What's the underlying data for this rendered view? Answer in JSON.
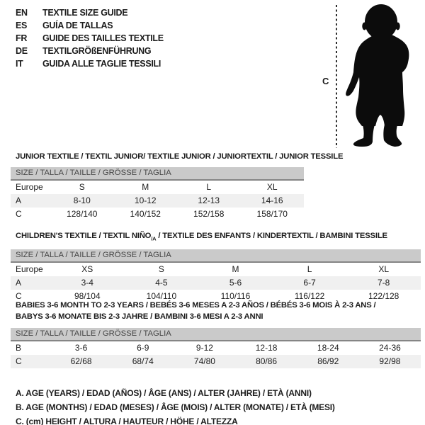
{
  "languages": [
    {
      "code": "EN",
      "label": "TEXTILE SIZE GUIDE"
    },
    {
      "code": "ES",
      "label": "GUÍA DE TALLAS"
    },
    {
      "code": "FR",
      "label": "GUIDE DES TAILLES TEXTILE"
    },
    {
      "code": "DE",
      "label": "TEXTILGRÖßENFÜHRUNG"
    },
    {
      "code": "IT",
      "label": "GUIDA ALLE TAGLIE TESSILI"
    }
  ],
  "figure": {
    "label": "C"
  },
  "colors": {
    "header_bar": "#cacaca",
    "header_bar_border": "#858585",
    "shaded_row": "#f0f0f0",
    "text": "#1c1c1c",
    "silhouette": "#0c0c0c"
  },
  "sections": [
    {
      "title_lines": [
        [
          {
            "t": "JUNIOR TEXTILE / TEXTIL JUNIOR/ TEXTILE JUNIOR / JUNIORTEXTIL / JUNIOR TESSILE"
          }
        ]
      ],
      "size_header": "SIZE / TALLA / TAILLE / GRÖSSE / TAGLIA",
      "rows": [
        {
          "label": "Europe",
          "values": [
            "S",
            "M",
            "L",
            "XL"
          ],
          "shaded": false
        },
        {
          "label": "A",
          "values": [
            "8-10",
            "10-12",
            "12-13",
            "14-16"
          ],
          "shaded": true
        },
        {
          "label": "C",
          "values": [
            "128/140",
            "140/152",
            "152/158",
            "158/170"
          ],
          "shaded": false
        }
      ]
    },
    {
      "title_lines": [
        [
          {
            "t": "CHILDREN'S TEXTILE / TEXTIL NIÑO"
          },
          {
            "t": "/A",
            "sub": true
          },
          {
            "t": " / TEXTILE DES ENFANTS / KINDERTEXTIL / BAMBINI TESSILE"
          }
        ]
      ],
      "size_header": "SIZE / TALLA / TAILLE / GRÖSSE / TAGLIA",
      "rows": [
        {
          "label": "Europe",
          "values": [
            "XS",
            "S",
            "M",
            "L",
            "XL"
          ],
          "shaded": false
        },
        {
          "label": "A",
          "values": [
            "3-4",
            "4-5",
            "5-6",
            "6-7",
            "7-8"
          ],
          "shaded": true
        },
        {
          "label": "C",
          "values": [
            "98/104",
            "104/110",
            "110/116",
            "116/122",
            "122/128"
          ],
          "shaded": false
        }
      ]
    },
    {
      "title_lines": [
        [
          {
            "t": "BABIES 3-6 MONTH TO 2-3 YEARS / BEBÉS 3-6 MESES A 2-3 AÑOS / BÉBÉS 3-6 MOIS À 2-3 ANS /"
          }
        ],
        [
          {
            "t": "BABYS 3-6 MONATE BIS 2-3 JAHRE / BAMBINI 3-6 MESI A 2-3 ANNI"
          }
        ]
      ],
      "size_header": "SIZE / TALLA / TAILLE / GRÖSSE / TAGLIA",
      "rows": [
        {
          "label": "B",
          "values": [
            "3-6",
            "6-9",
            "9-12",
            "12-18",
            "18-24",
            "24-36"
          ],
          "shaded": false
        },
        {
          "label": "C",
          "values": [
            "62/68",
            "68/74",
            "74/80",
            "80/86",
            "86/92",
            "92/98"
          ],
          "shaded": true
        }
      ]
    }
  ],
  "legend": [
    "A. AGE (YEARS) / EDAD (AÑOS) / ÂGE (ANS) / ALTER (JAHRE) / ETÀ (ANNI)",
    "B. AGE (MONTHS) / EDAD (MESES) / ÂGE (MOIS) / ALTER (MONATE) / ETÀ (MESI)",
    "C. (cm) HEIGHT / ALTURA / HAUTEUR / HÖHE / ALTEZZA"
  ]
}
